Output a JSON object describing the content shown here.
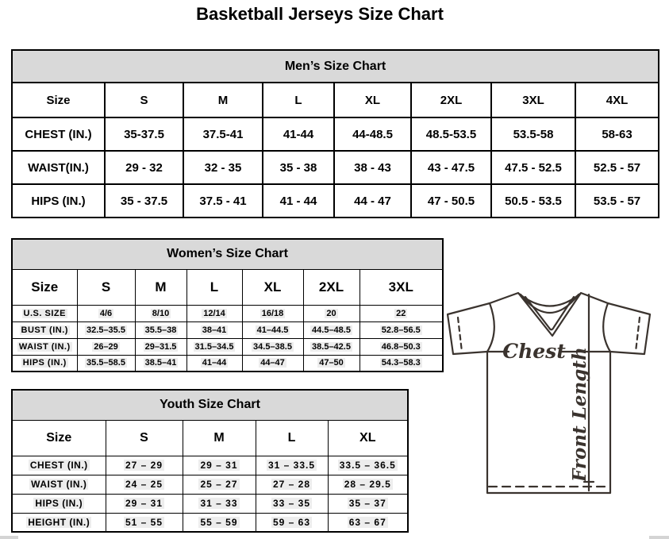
{
  "page": {
    "title": "Basketball Jerseys Size Chart"
  },
  "tables": {
    "mens": {
      "title": "Men’s Size Chart",
      "columns": [
        "Size",
        "S",
        "M",
        "L",
        "XL",
        "2XL",
        "3XL",
        "4XL"
      ],
      "rows": [
        {
          "label": "CHEST (IN.)",
          "values": [
            "35-37.5",
            "37.5-41",
            "41-44",
            "44-48.5",
            "48.5-53.5",
            "53.5-58",
            "58-63"
          ]
        },
        {
          "label": "WAIST(IN.)",
          "values": [
            "29 - 32",
            "32 - 35",
            "35 - 38",
            "38 - 43",
            "43 - 47.5",
            "47.5 - 52.5",
            "52.5 - 57"
          ]
        },
        {
          "label": "HIPS (IN.)",
          "values": [
            "35 - 37.5",
            "37.5 - 41",
            "41 - 44",
            "44 - 47",
            "47 - 50.5",
            "50.5 - 53.5",
            "53.5 - 57"
          ]
        }
      ]
    },
    "womens": {
      "title": "Women’s Size Chart",
      "columns": [
        "Size",
        "S",
        "M",
        "L",
        "XL",
        "2XL",
        "3XL"
      ],
      "rows": [
        {
          "label": "U.S. SIZE",
          "values": [
            "4/6",
            "8/10",
            "12/14",
            "16/18",
            "20",
            "22"
          ]
        },
        {
          "label": "BUST (IN.)",
          "values": [
            "32.5–35.5",
            "35.5–38",
            "38–41",
            "41–44.5",
            "44.5–48.5",
            "52.8–56.5"
          ]
        },
        {
          "label": "WAIST (IN.)",
          "values": [
            "26–29",
            "29–31.5",
            "31.5–34.5",
            "34.5–38.5",
            "38.5–42.5",
            "46.8–50.3"
          ]
        },
        {
          "label": "HIPS (IN.)",
          "values": [
            "35.5–58.5",
            "38.5–41",
            "41–44",
            "44–47",
            "47–50",
            "54.3–58.3"
          ]
        }
      ]
    },
    "youth": {
      "title": "Youth Size Chart",
      "columns": [
        "Size",
        "S",
        "M",
        "L",
        "XL"
      ],
      "rows": [
        {
          "label": "CHEST (IN.)",
          "values": [
            "27 – 29",
            "29 – 31",
            "31 – 33.5",
            "33.5 – 36.5"
          ]
        },
        {
          "label": "WAIST (IN.)",
          "values": [
            "24 – 25",
            "25 – 27",
            "27 – 28",
            "28 – 29.5"
          ]
        },
        {
          "label": "HIPS (IN.)",
          "values": [
            "29 – 31",
            "31 – 33",
            "33 – 35",
            "35 – 37"
          ]
        },
        {
          "label": "HEIGHT (IN.)",
          "values": [
            "51 – 55",
            "55 – 59",
            "59 – 63",
            "63 – 67"
          ]
        }
      ]
    }
  },
  "diagram": {
    "chest_label": "Chest",
    "front_length_label": "Front Length"
  },
  "colors": {
    "table_caption_bg": "#d9d9d9",
    "table_border": "#000000",
    "jersey_line": "#3a332e",
    "highlight_bg": "#ededed"
  }
}
